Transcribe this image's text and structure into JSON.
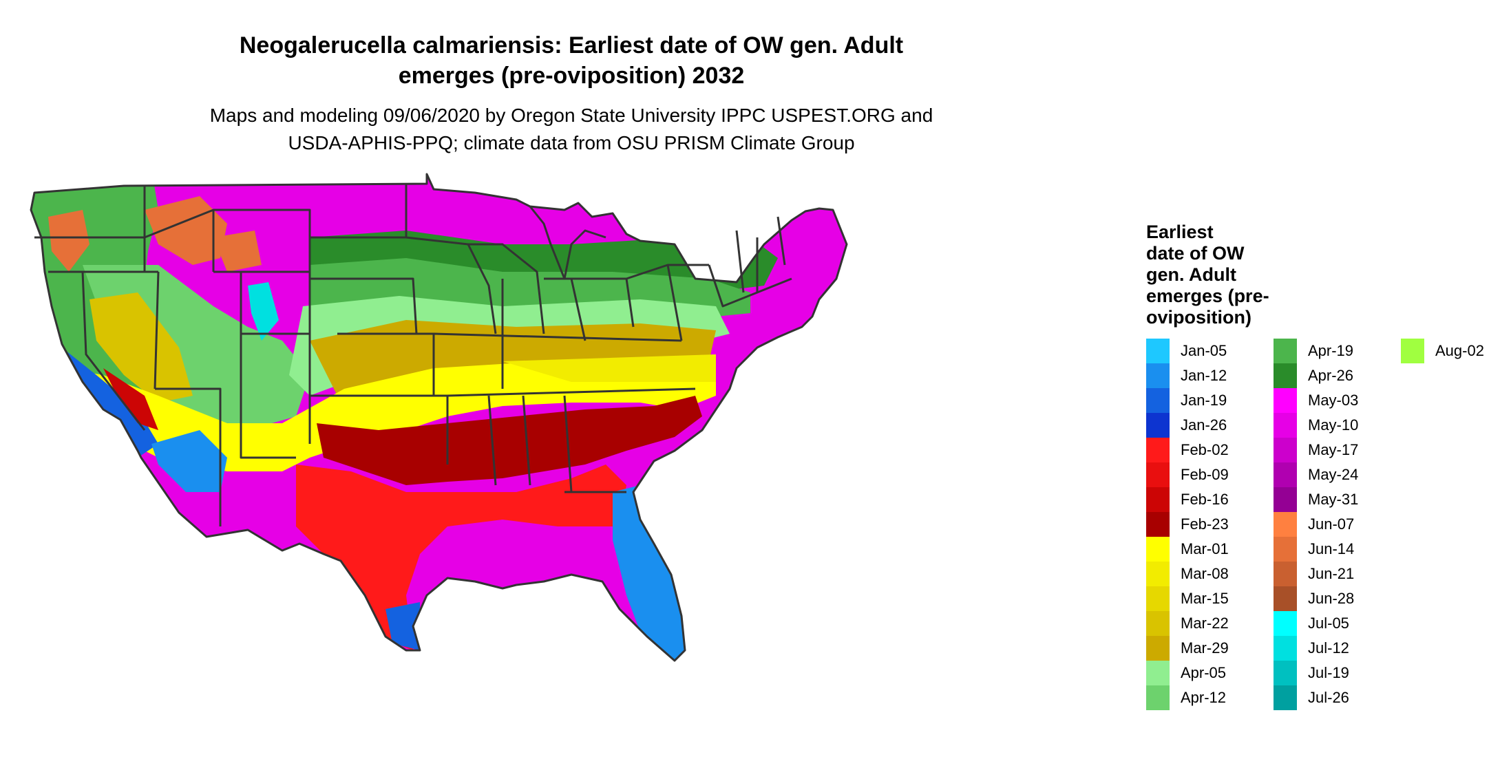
{
  "title_line1": "Neogalerucella calmariensis: Earliest date of OW gen. Adult",
  "title_line2": "emerges (pre-oviposition) 2032",
  "subtitle_line1": "Maps and modeling 09/06/2020 by Oregon State University IPPC USPEST.ORG and",
  "subtitle_line2": "USDA-APHIS-PPQ; climate data from OSU PRISM Climate Group",
  "legend": {
    "title_lines": [
      "Earliest",
      "date of OW",
      "gen. Adult",
      "emerges (pre-",
      "oviposition)"
    ],
    "items": [
      {
        "label": "Jan-05",
        "color": "#1ec8ff"
      },
      {
        "label": "Jan-12",
        "color": "#1a8fef"
      },
      {
        "label": "Jan-19",
        "color": "#1462e0"
      },
      {
        "label": "Jan-26",
        "color": "#0d34d0"
      },
      {
        "label": "Feb-02",
        "color": "#ff1a1a"
      },
      {
        "label": "Feb-09",
        "color": "#e90f0f"
      },
      {
        "label": "Feb-16",
        "color": "#cc0505"
      },
      {
        "label": "Feb-23",
        "color": "#a80000"
      },
      {
        "label": "Mar-01",
        "color": "#ffff00"
      },
      {
        "label": "Mar-08",
        "color": "#f2ec00"
      },
      {
        "label": "Mar-15",
        "color": "#e6d800"
      },
      {
        "label": "Mar-22",
        "color": "#d9c300"
      },
      {
        "label": "Mar-29",
        "color": "#ccaa00"
      },
      {
        "label": "Apr-05",
        "color": "#90ee90"
      },
      {
        "label": "Apr-12",
        "color": "#6dd26d"
      },
      {
        "label": "Apr-19",
        "color": "#4cb54c"
      },
      {
        "label": "Apr-26",
        "color": "#2a8c2a"
      },
      {
        "label": "May-03",
        "color": "#ff00ff"
      },
      {
        "label": "May-10",
        "color": "#e600e6"
      },
      {
        "label": "May-17",
        "color": "#cc00cc"
      },
      {
        "label": "May-24",
        "color": "#b000b0"
      },
      {
        "label": "May-31",
        "color": "#940094"
      },
      {
        "label": "Jun-07",
        "color": "#ff8040"
      },
      {
        "label": "Jun-14",
        "color": "#e67038"
      },
      {
        "label": "Jun-21",
        "color": "#c96030"
      },
      {
        "label": "Jun-28",
        "color": "#a85028"
      },
      {
        "label": "Jul-05",
        "color": "#00ffff"
      },
      {
        "label": "Jul-12",
        "color": "#00e0e0"
      },
      {
        "label": "Jul-19",
        "color": "#00c0c0"
      },
      {
        "label": "Jul-26",
        "color": "#00a0a0"
      },
      {
        "label": "Aug-02",
        "color": "#a0ff40"
      }
    ]
  },
  "zone_colors": {
    "magenta": "#e600e6",
    "dark_green": "#2a8c2a",
    "mid_green": "#4cb54c",
    "light_green": "#90ee90",
    "mustard": "#ccaa00",
    "yellow": "#ffff00",
    "pale_yellow": "#f2ec00",
    "dark_red": "#a80000",
    "red": "#ff1a1a",
    "blue": "#1462e0",
    "light_blue": "#1a8fef",
    "orange": "#e67038",
    "cyan": "#00e0e0",
    "border": "#333333"
  }
}
